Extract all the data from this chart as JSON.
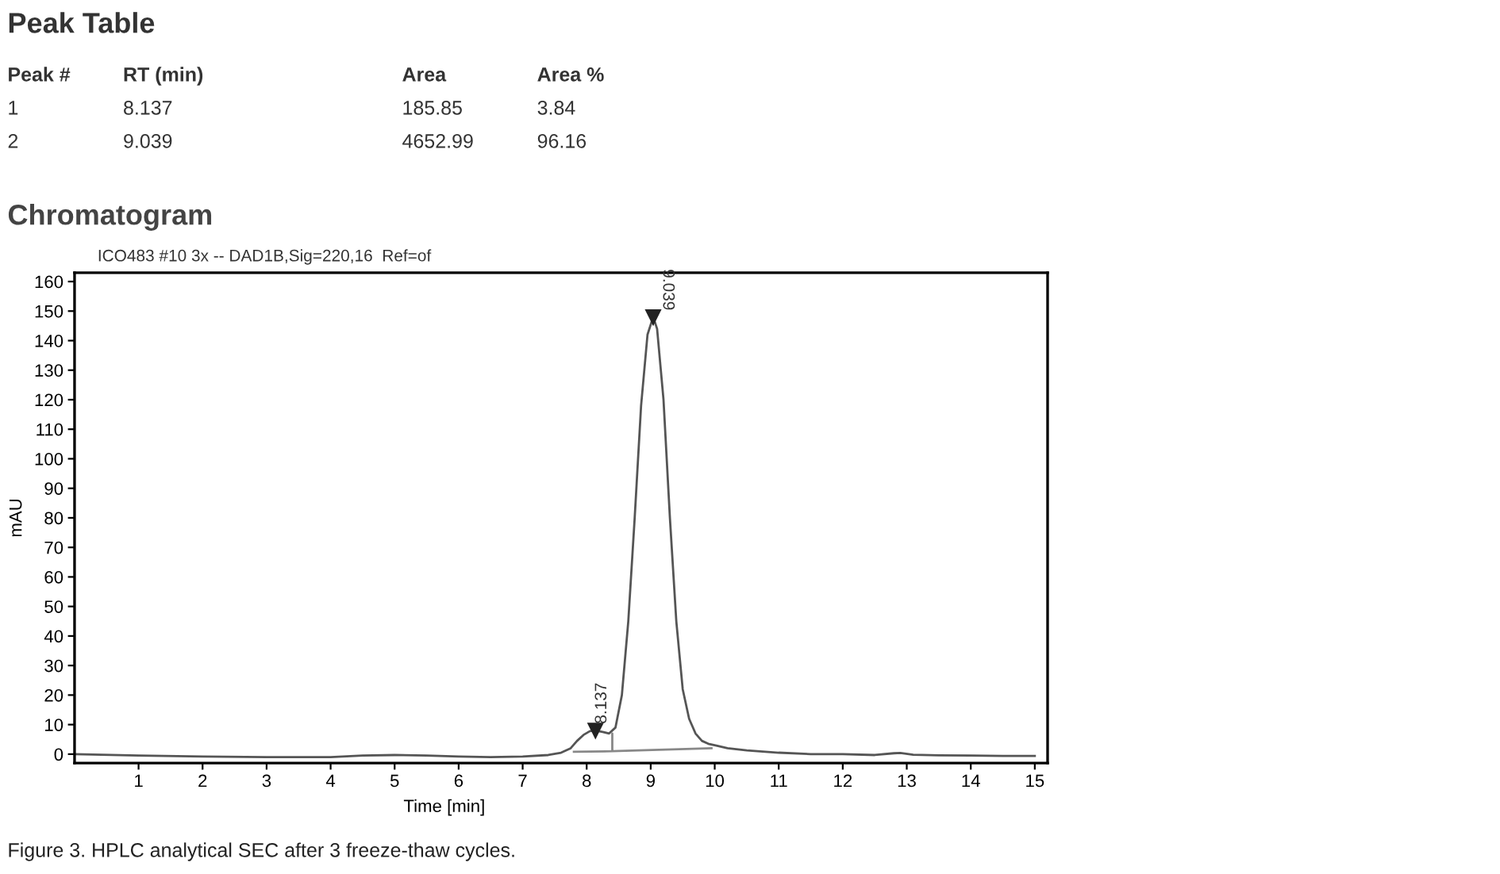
{
  "chart_data": {
    "type": "line",
    "title": "Chromatogram",
    "subtitle": "ICO483 #10 3x -- DAD1B,Sig=220,16  Ref=of",
    "xlabel": "Time [min]",
    "ylabel": "mAU",
    "series": [
      {
        "color": "#555555",
        "x": [
          0,
          1,
          2,
          3,
          4,
          4.5,
          5,
          5.5,
          6,
          6.5,
          7,
          7.4,
          7.6,
          7.75,
          7.85,
          7.95,
          8.05,
          8.137,
          8.25,
          8.35,
          8.45,
          8.55,
          8.65,
          8.75,
          8.85,
          8.95,
          9.039,
          9.1,
          9.2,
          9.3,
          9.4,
          9.5,
          9.6,
          9.7,
          9.8,
          9.9,
          10,
          10.2,
          10.5,
          11,
          11.5,
          12,
          12.5,
          12.8,
          12.9,
          13.1,
          13.5,
          14,
          14.5,
          15
        ],
        "values": [
          0,
          -0.5,
          -0.8,
          -1,
          -1,
          -0.5,
          -0.3,
          -0.5,
          -0.8,
          -1,
          -0.8,
          -0.3,
          0.5,
          2,
          4.5,
          6.5,
          7.8,
          8,
          7.5,
          7,
          9,
          20,
          45,
          80,
          118,
          142,
          148,
          144,
          120,
          80,
          45,
          22,
          12,
          7,
          4.5,
          3.5,
          3,
          2,
          1.3,
          0.5,
          0,
          0,
          -0.3,
          0.3,
          0.4,
          -0.2,
          -0.4,
          -0.5,
          -0.6,
          -0.6
        ]
      },
      {
        "color": "#888888",
        "x": [
          7.8,
          8.4,
          8.4,
          8.4,
          9.95
        ],
        "values": [
          0.8,
          1.0,
          7.0,
          1.0,
          2.0
        ]
      }
    ],
    "xlim": [
      0,
      15.2
    ],
    "ylim": [
      -3,
      163
    ],
    "xticks": [
      1,
      2,
      3,
      4,
      5,
      6,
      7,
      8,
      9,
      10,
      11,
      12,
      13,
      14,
      15
    ],
    "yticks": [
      0,
      10,
      20,
      30,
      40,
      50,
      60,
      70,
      80,
      90,
      100,
      110,
      120,
      130,
      140,
      150,
      160
    ],
    "grid": false,
    "legend": false,
    "marker": "none",
    "line_style": "solid",
    "annotations": [
      {
        "text": "8.137",
        "x": 8.137,
        "y": 8
      },
      {
        "text": "9.039",
        "x": 9.039,
        "y": 148
      },
      "Peak Table",
      "Peak #",
      "RT (min)",
      "Area",
      "Area %",
      "1",
      "8.137",
      "185.85",
      "3.84",
      "2",
      "9.039",
      "4652.99",
      "96.16",
      "Figure 3. HPLC analytical SEC after 3 freeze-thaw cycles."
    ]
  }
}
